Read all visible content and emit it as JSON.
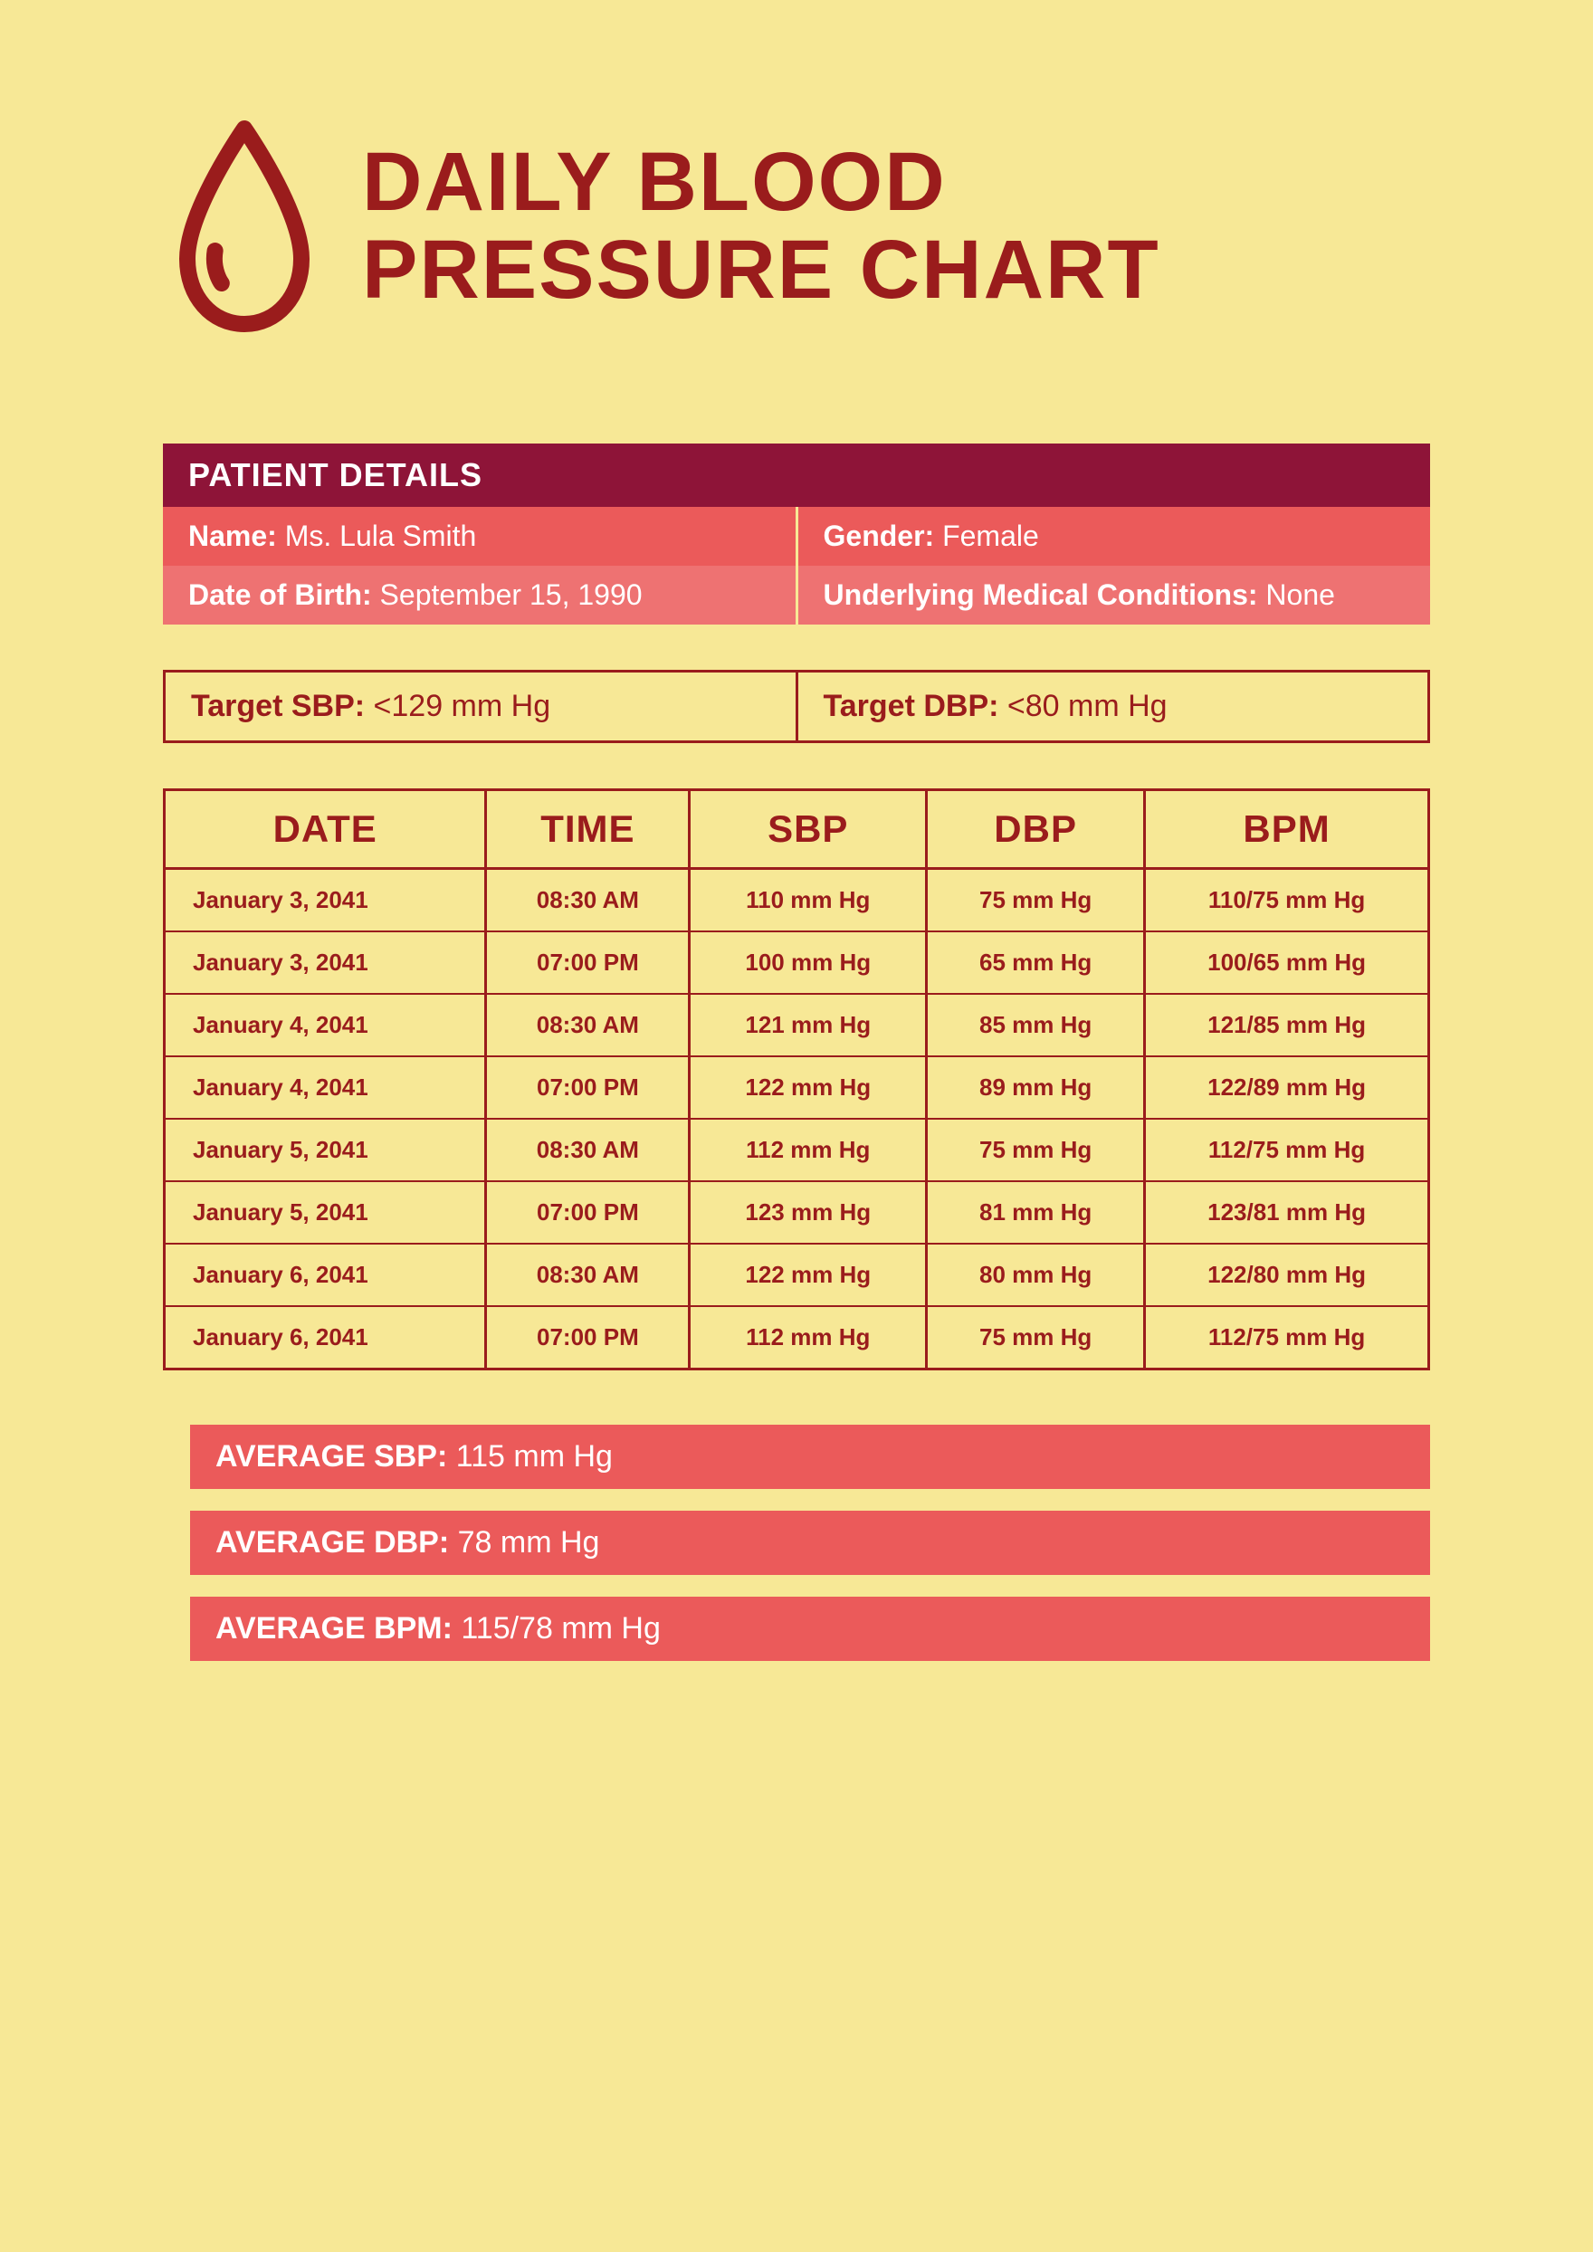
{
  "colors": {
    "background": "#f7e896",
    "dark_red": "#9a1c1c",
    "header_maroon": "#8e1438",
    "coral": "#eb5a5a",
    "coral_light": "#ee7272",
    "white": "#ffffff"
  },
  "title": "DAILY BLOOD PRESSURE CHART",
  "patient_details": {
    "header": "PATIENT DETAILS",
    "name_label": "Name:",
    "name_value": "Ms. Lula Smith",
    "gender_label": "Gender:",
    "gender_value": "Female",
    "dob_label": "Date of Birth:",
    "dob_value": "September 15, 1990",
    "conditions_label": "Underlying Medical Conditions:",
    "conditions_value": "None"
  },
  "targets": {
    "sbp_label": "Target SBP:",
    "sbp_value": "<129 mm Hg",
    "dbp_label": "Target DBP:",
    "dbp_value": "<80 mm Hg"
  },
  "table": {
    "columns": [
      "DATE",
      "TIME",
      "SBP",
      "DBP",
      "BPM"
    ],
    "rows": [
      [
        "January 3, 2041",
        "08:30 AM",
        "110 mm Hg",
        "75 mm Hg",
        "110/75 mm Hg"
      ],
      [
        "January 3, 2041",
        "07:00 PM",
        "100 mm Hg",
        "65 mm Hg",
        "100/65 mm Hg"
      ],
      [
        "January 4, 2041",
        "08:30 AM",
        "121 mm Hg",
        "85 mm Hg",
        "121/85 mm Hg"
      ],
      [
        "January 4, 2041",
        "07:00 PM",
        "122 mm Hg",
        "89 mm Hg",
        "122/89 mm Hg"
      ],
      [
        "January 5, 2041",
        "08:30 AM",
        "112 mm Hg",
        "75 mm Hg",
        "112/75 mm Hg"
      ],
      [
        "January 5, 2041",
        "07:00 PM",
        "123 mm Hg",
        "81 mm Hg",
        "123/81 mm Hg"
      ],
      [
        "January 6, 2041",
        "08:30 AM",
        "122 mm Hg",
        "80 mm Hg",
        "122/80 mm Hg"
      ],
      [
        "January 6, 2041",
        "07:00 PM",
        "112 mm Hg",
        "75 mm Hg",
        "112/75 mm Hg"
      ]
    ]
  },
  "averages": {
    "sbp_label": "AVERAGE SBP:",
    "sbp_value": "115 mm Hg",
    "dbp_label": "AVERAGE DBP:",
    "dbp_value": "78 mm Hg",
    "bpm_label": "AVERAGE BPM:",
    "bpm_value": "115/78 mm Hg"
  }
}
